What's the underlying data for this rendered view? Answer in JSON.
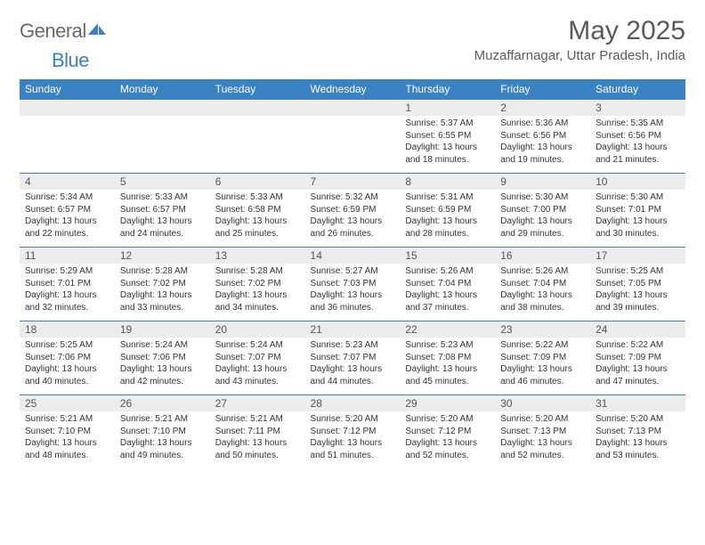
{
  "logo": {
    "general": "General",
    "blue": "Blue",
    "brand_color": "#3b82c4",
    "gray": "#6a6a6a"
  },
  "title": "May 2025",
  "location": "Muzaffarnagar, Uttar Pradesh, India",
  "colors": {
    "header_bg": "#3b82c4",
    "header_text": "#ffffff",
    "band_bg": "#ececec",
    "border": "#3b82c4",
    "text": "#333333"
  },
  "day_names": [
    "Sunday",
    "Monday",
    "Tuesday",
    "Wednesday",
    "Thursday",
    "Friday",
    "Saturday"
  ],
  "weeks": [
    [
      {
        "n": "",
        "sr": "",
        "ss": "",
        "dl": ""
      },
      {
        "n": "",
        "sr": "",
        "ss": "",
        "dl": ""
      },
      {
        "n": "",
        "sr": "",
        "ss": "",
        "dl": ""
      },
      {
        "n": "",
        "sr": "",
        "ss": "",
        "dl": ""
      },
      {
        "n": "1",
        "sr": "Sunrise: 5:37 AM",
        "ss": "Sunset: 6:55 PM",
        "dl": "Daylight: 13 hours and 18 minutes."
      },
      {
        "n": "2",
        "sr": "Sunrise: 5:36 AM",
        "ss": "Sunset: 6:56 PM",
        "dl": "Daylight: 13 hours and 19 minutes."
      },
      {
        "n": "3",
        "sr": "Sunrise: 5:35 AM",
        "ss": "Sunset: 6:56 PM",
        "dl": "Daylight: 13 hours and 21 minutes."
      }
    ],
    [
      {
        "n": "4",
        "sr": "Sunrise: 5:34 AM",
        "ss": "Sunset: 6:57 PM",
        "dl": "Daylight: 13 hours and 22 minutes."
      },
      {
        "n": "5",
        "sr": "Sunrise: 5:33 AM",
        "ss": "Sunset: 6:57 PM",
        "dl": "Daylight: 13 hours and 24 minutes."
      },
      {
        "n": "6",
        "sr": "Sunrise: 5:33 AM",
        "ss": "Sunset: 6:58 PM",
        "dl": "Daylight: 13 hours and 25 minutes."
      },
      {
        "n": "7",
        "sr": "Sunrise: 5:32 AM",
        "ss": "Sunset: 6:59 PM",
        "dl": "Daylight: 13 hours and 26 minutes."
      },
      {
        "n": "8",
        "sr": "Sunrise: 5:31 AM",
        "ss": "Sunset: 6:59 PM",
        "dl": "Daylight: 13 hours and 28 minutes."
      },
      {
        "n": "9",
        "sr": "Sunrise: 5:30 AM",
        "ss": "Sunset: 7:00 PM",
        "dl": "Daylight: 13 hours and 29 minutes."
      },
      {
        "n": "10",
        "sr": "Sunrise: 5:30 AM",
        "ss": "Sunset: 7:01 PM",
        "dl": "Daylight: 13 hours and 30 minutes."
      }
    ],
    [
      {
        "n": "11",
        "sr": "Sunrise: 5:29 AM",
        "ss": "Sunset: 7:01 PM",
        "dl": "Daylight: 13 hours and 32 minutes."
      },
      {
        "n": "12",
        "sr": "Sunrise: 5:28 AM",
        "ss": "Sunset: 7:02 PM",
        "dl": "Daylight: 13 hours and 33 minutes."
      },
      {
        "n": "13",
        "sr": "Sunrise: 5:28 AM",
        "ss": "Sunset: 7:02 PM",
        "dl": "Daylight: 13 hours and 34 minutes."
      },
      {
        "n": "14",
        "sr": "Sunrise: 5:27 AM",
        "ss": "Sunset: 7:03 PM",
        "dl": "Daylight: 13 hours and 36 minutes."
      },
      {
        "n": "15",
        "sr": "Sunrise: 5:26 AM",
        "ss": "Sunset: 7:04 PM",
        "dl": "Daylight: 13 hours and 37 minutes."
      },
      {
        "n": "16",
        "sr": "Sunrise: 5:26 AM",
        "ss": "Sunset: 7:04 PM",
        "dl": "Daylight: 13 hours and 38 minutes."
      },
      {
        "n": "17",
        "sr": "Sunrise: 5:25 AM",
        "ss": "Sunset: 7:05 PM",
        "dl": "Daylight: 13 hours and 39 minutes."
      }
    ],
    [
      {
        "n": "18",
        "sr": "Sunrise: 5:25 AM",
        "ss": "Sunset: 7:06 PM",
        "dl": "Daylight: 13 hours and 40 minutes."
      },
      {
        "n": "19",
        "sr": "Sunrise: 5:24 AM",
        "ss": "Sunset: 7:06 PM",
        "dl": "Daylight: 13 hours and 42 minutes."
      },
      {
        "n": "20",
        "sr": "Sunrise: 5:24 AM",
        "ss": "Sunset: 7:07 PM",
        "dl": "Daylight: 13 hours and 43 minutes."
      },
      {
        "n": "21",
        "sr": "Sunrise: 5:23 AM",
        "ss": "Sunset: 7:07 PM",
        "dl": "Daylight: 13 hours and 44 minutes."
      },
      {
        "n": "22",
        "sr": "Sunrise: 5:23 AM",
        "ss": "Sunset: 7:08 PM",
        "dl": "Daylight: 13 hours and 45 minutes."
      },
      {
        "n": "23",
        "sr": "Sunrise: 5:22 AM",
        "ss": "Sunset: 7:09 PM",
        "dl": "Daylight: 13 hours and 46 minutes."
      },
      {
        "n": "24",
        "sr": "Sunrise: 5:22 AM",
        "ss": "Sunset: 7:09 PM",
        "dl": "Daylight: 13 hours and 47 minutes."
      }
    ],
    [
      {
        "n": "25",
        "sr": "Sunrise: 5:21 AM",
        "ss": "Sunset: 7:10 PM",
        "dl": "Daylight: 13 hours and 48 minutes."
      },
      {
        "n": "26",
        "sr": "Sunrise: 5:21 AM",
        "ss": "Sunset: 7:10 PM",
        "dl": "Daylight: 13 hours and 49 minutes."
      },
      {
        "n": "27",
        "sr": "Sunrise: 5:21 AM",
        "ss": "Sunset: 7:11 PM",
        "dl": "Daylight: 13 hours and 50 minutes."
      },
      {
        "n": "28",
        "sr": "Sunrise: 5:20 AM",
        "ss": "Sunset: 7:12 PM",
        "dl": "Daylight: 13 hours and 51 minutes."
      },
      {
        "n": "29",
        "sr": "Sunrise: 5:20 AM",
        "ss": "Sunset: 7:12 PM",
        "dl": "Daylight: 13 hours and 52 minutes."
      },
      {
        "n": "30",
        "sr": "Sunrise: 5:20 AM",
        "ss": "Sunset: 7:13 PM",
        "dl": "Daylight: 13 hours and 52 minutes."
      },
      {
        "n": "31",
        "sr": "Sunrise: 5:20 AM",
        "ss": "Sunset: 7:13 PM",
        "dl": "Daylight: 13 hours and 53 minutes."
      }
    ]
  ]
}
